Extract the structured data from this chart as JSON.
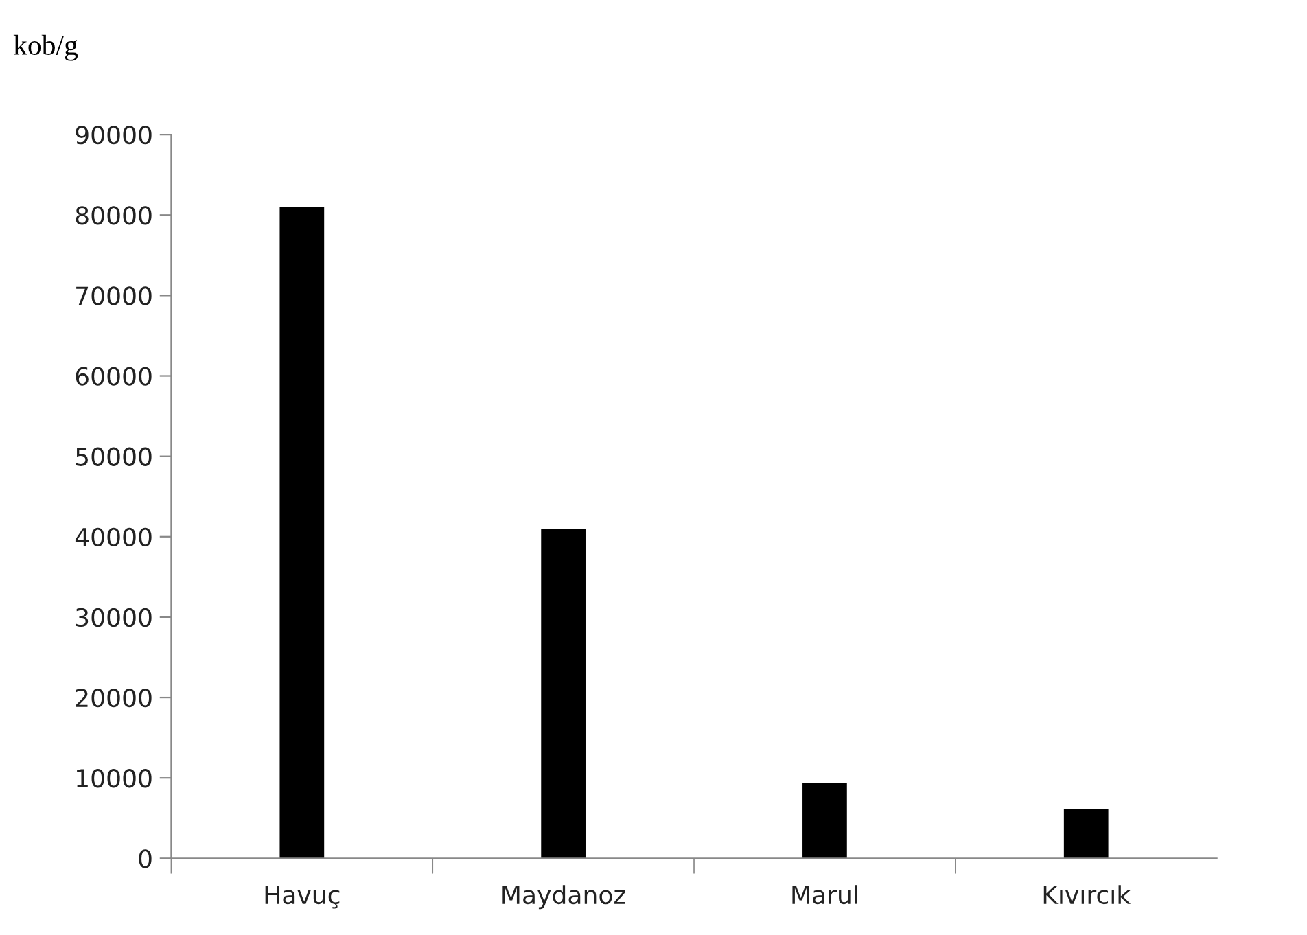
{
  "chart_data": {
    "type": "bar",
    "ylabel": "kob/g",
    "categories": [
      "Havuç",
      "Maydanoz",
      "Marul",
      "Kıvırcık"
    ],
    "values": [
      81000,
      41000,
      9400,
      6100
    ],
    "color": "#000000",
    "ylim": [
      0,
      90000
    ],
    "yticks": [
      0,
      10000,
      20000,
      30000,
      40000,
      50000,
      60000,
      70000,
      80000,
      90000
    ],
    "grid": false,
    "legend": false
  }
}
